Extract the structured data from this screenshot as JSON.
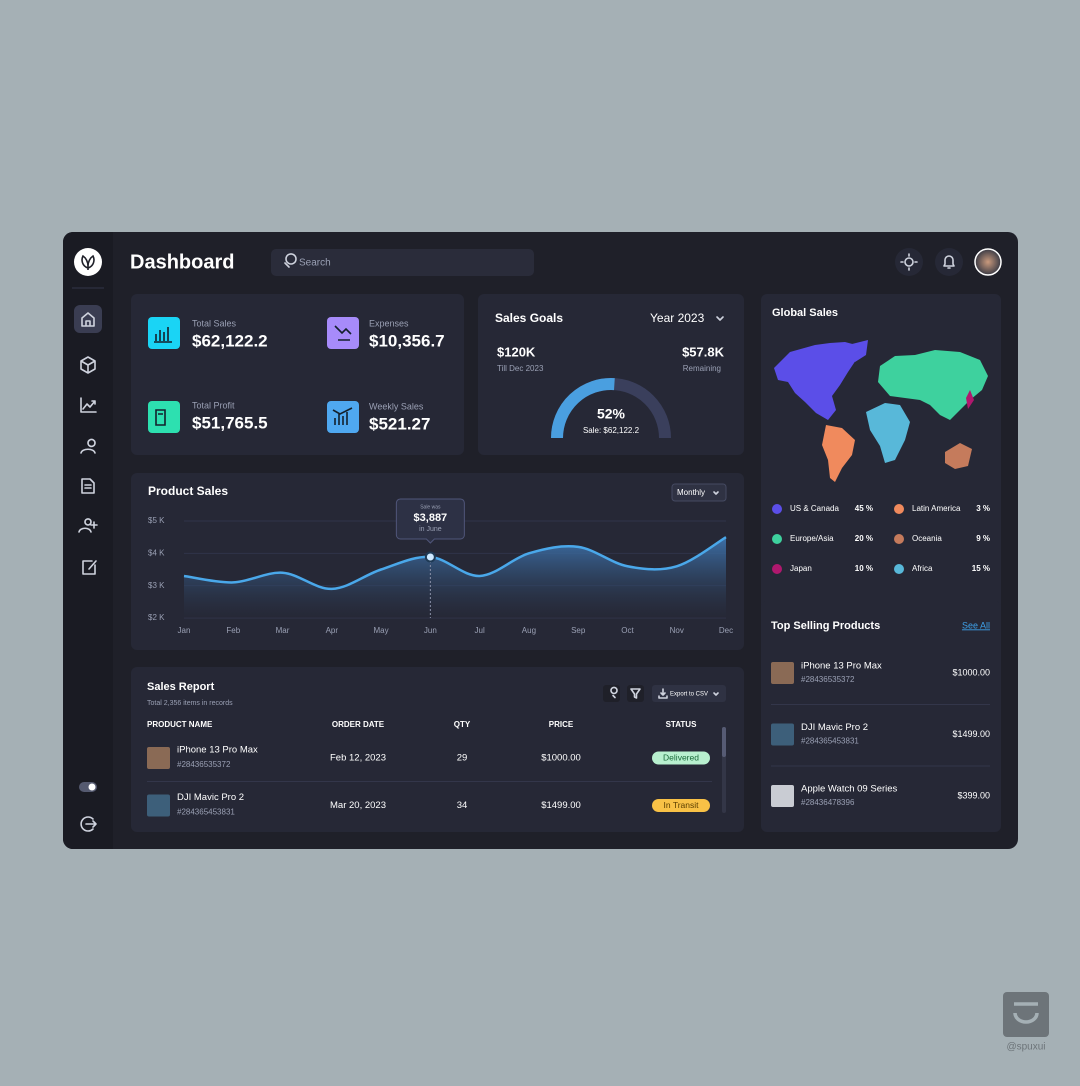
{
  "header": {
    "title": "Dashboard",
    "search_placeholder": "Search"
  },
  "stats": [
    {
      "label": "Total Sales",
      "value": "$62,122.2"
    },
    {
      "label": "Expenses",
      "value": "$10,356.7"
    },
    {
      "label": "Total Profit",
      "value": "$51,765.5"
    },
    {
      "label": "Weekly Sales",
      "value": "$521.27"
    }
  ],
  "sales_goals": {
    "title": "Sales Goals",
    "period": "Year 2023",
    "target": "$120K",
    "target_note": "Till Dec 2023",
    "remaining": "$57.8K",
    "remaining_note": "Remaining",
    "progress": {
      "value": 52,
      "label": "52%"
    },
    "sale": "Sale: $62,122.2"
  },
  "product_sales": {
    "type": "line",
    "title": "Product Sales",
    "filter": "Monthly",
    "categories": [
      "Jan",
      "Feb",
      "Mar",
      "Apr",
      "May",
      "Jun",
      "Jul",
      "Aug",
      "Sep",
      "Oct",
      "Nov",
      "Dec"
    ],
    "values": [
      3300,
      3100,
      3400,
      2900,
      3500,
      3887,
      3300,
      4000,
      4200,
      3600,
      3600,
      4500
    ],
    "value_labels": [
      null,
      null,
      null,
      null,
      null,
      "$3,887",
      null,
      null,
      null,
      null,
      null,
      null
    ],
    "tooltip_caption": "Sale was",
    "tooltip_note": "in June",
    "ylim": [
      2000,
      5000
    ],
    "yticks": [
      {
        "value": 2000,
        "label": "$2 K"
      },
      {
        "value": 3000,
        "label": "$3 K"
      },
      {
        "value": 4000,
        "label": "$4 K"
      },
      {
        "value": 5000,
        "label": "$5 K"
      }
    ],
    "color": "#4aa8ea",
    "grid": true
  },
  "global_sales": {
    "title": "Global Sales",
    "regions": [
      {
        "name": "US & Canada",
        "share": "45 %",
        "color": "#5b4ee8"
      },
      {
        "name": "Latin America",
        "share": "3 %",
        "color": "#f08a5d"
      },
      {
        "name": "Europe/Asia",
        "share": "20 %",
        "color": "#3ed19e"
      },
      {
        "name": "Oceania",
        "share": "9 %",
        "color": "#c57b5c"
      },
      {
        "name": "Japan",
        "share": "10 %",
        "color": "#b0186e"
      },
      {
        "name": "Africa",
        "share": "15 %",
        "color": "#58b8d9"
      }
    ]
  },
  "top_products": {
    "title": "Top Selling Products",
    "link": "See All",
    "items": [
      {
        "name": "iPhone 13 Pro Max",
        "id": "#28436535372",
        "price": "$1000.00"
      },
      {
        "name": "DJI Mavic Pro 2",
        "id": "#284365453831",
        "price": "$1499.00"
      },
      {
        "name": "Apple Watch 09 Series",
        "id": "#28436478396",
        "price": "$399.00"
      }
    ]
  },
  "sales_report": {
    "title": "Sales Report",
    "subtitle": "Total 2,356 items in records",
    "export": "Export to CSV",
    "columns": [
      "PRODUCT NAME",
      "ORDER DATE",
      "QTY",
      "PRICE",
      "STATUS"
    ],
    "rows": [
      [
        "iPhone 13 Pro Max",
        "#28436535372",
        "Feb 12, 2023",
        29,
        "$1000.00",
        "Delivered"
      ],
      [
        "DJI Mavic Pro 2",
        "#284365453831",
        "Mar 20, 2023",
        34,
        "$1499.00",
        "In Transit"
      ]
    ]
  },
  "watermark": "@spuxui"
}
